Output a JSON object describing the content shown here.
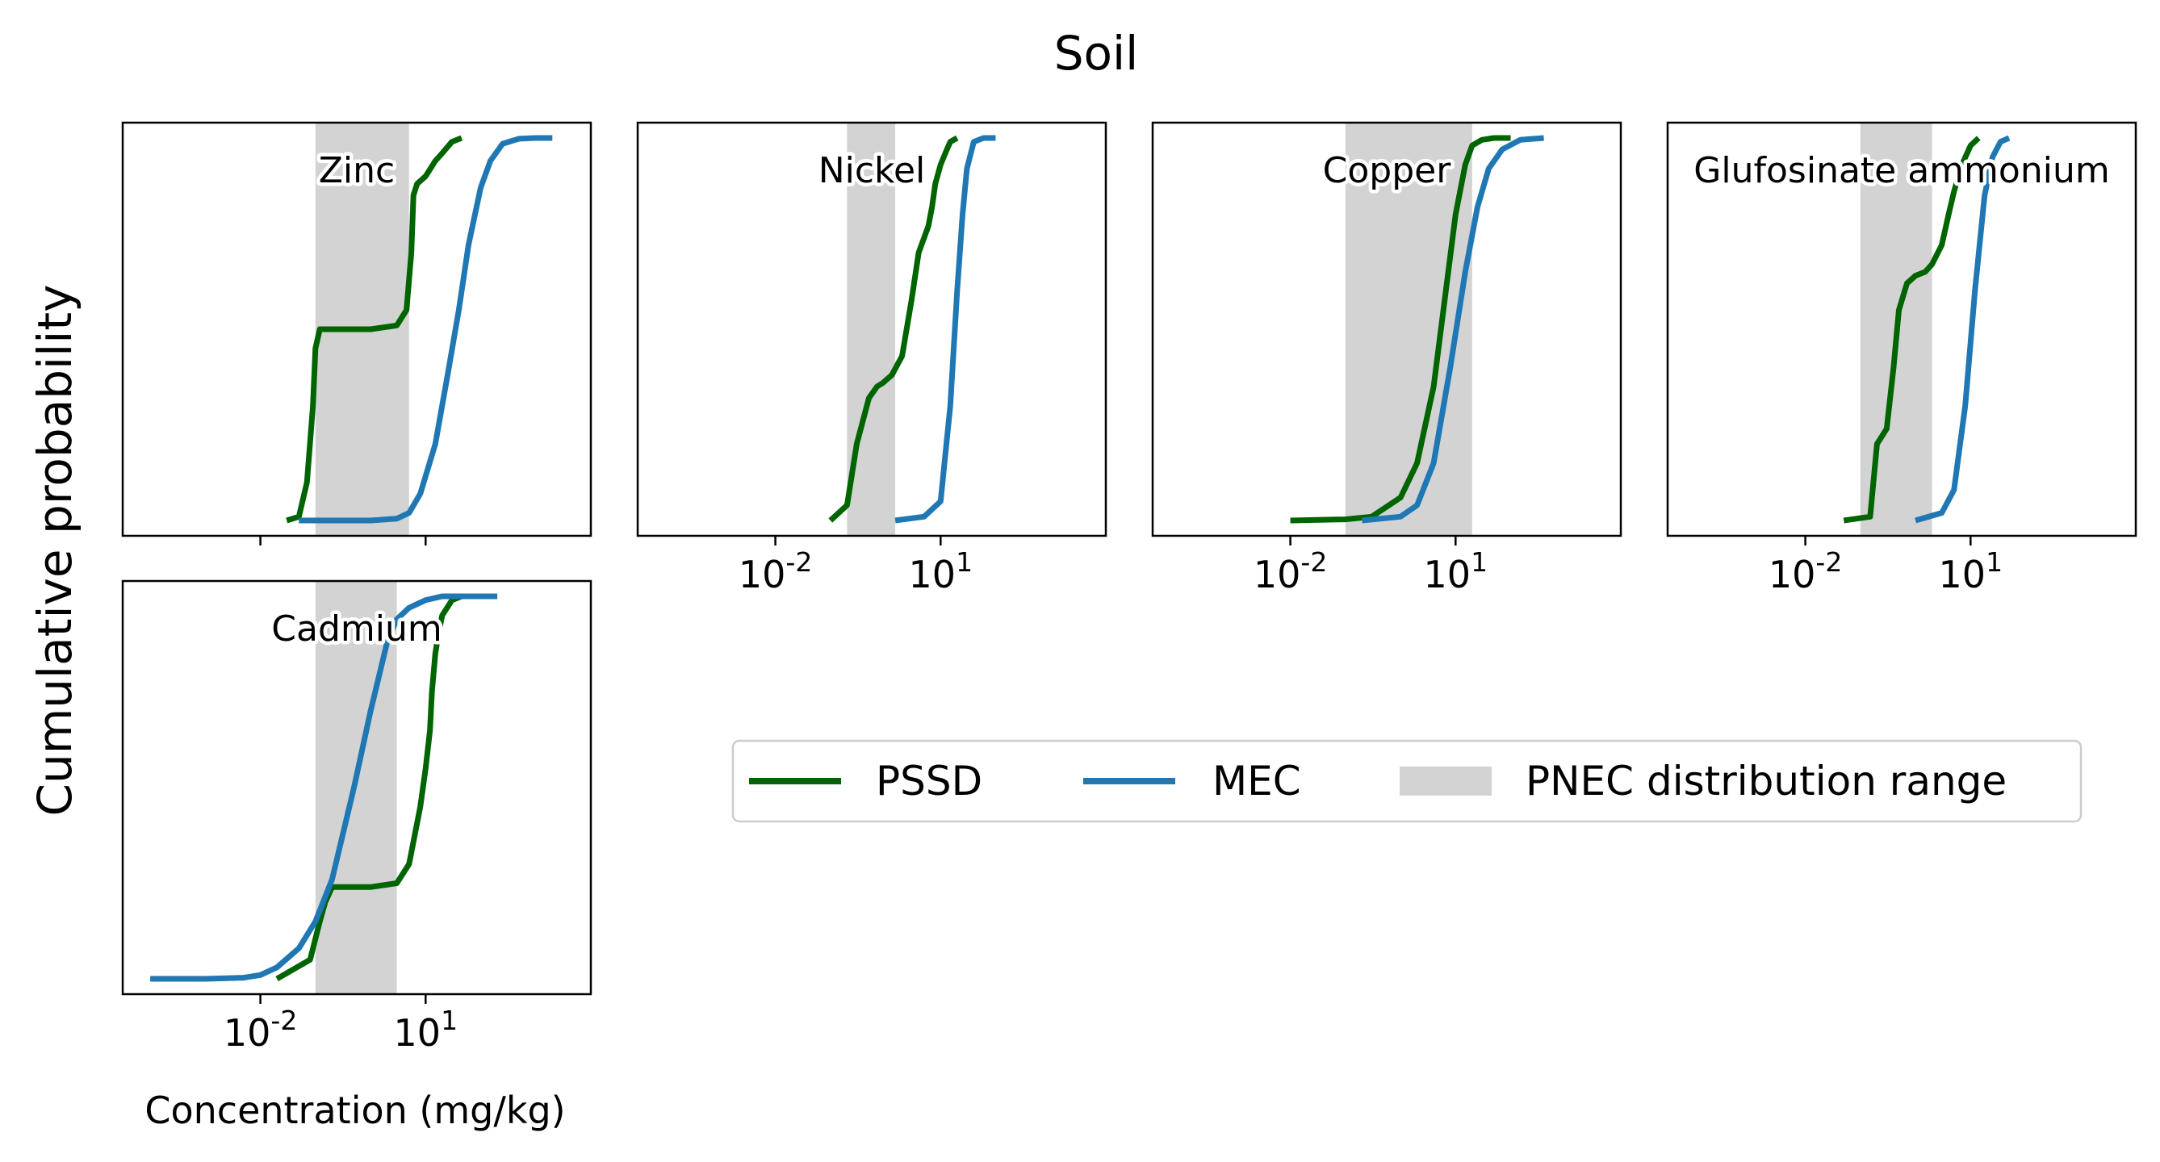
{
  "figure": {
    "title": "Soil",
    "ylabel": "Cumulative probability",
    "xlabel": "Concentration (mg/kg)"
  },
  "colors": {
    "pssd": "#006400",
    "mec": "#1f77b4",
    "pnec": "#d3d3d3"
  },
  "legend": {
    "placement": "center-right",
    "entries": [
      {
        "key": "pssd",
        "label": "PSSD"
      },
      {
        "key": "mec",
        "label": "MEC"
      },
      {
        "key": "pnec",
        "label": "PNEC distribution range"
      }
    ]
  },
  "chart_data": [
    {
      "type": "line",
      "title": "Zinc",
      "xscale": "log",
      "xlim": [
        3.16e-05,
        10000
      ],
      "ylim": [
        -0.04,
        1.04
      ],
      "xticks": [
        0.01,
        10
      ],
      "xtick_labels": [],
      "pnec_range": [
        0.1,
        5
      ],
      "series": [
        {
          "name": "PSSD",
          "x": [
            0.03,
            0.05,
            0.07,
            0.09,
            0.1,
            0.12,
            0.2,
            1,
            3,
            4.5,
            5.5,
            6,
            7,
            10,
            15,
            20,
            30,
            45
          ],
          "y": [
            0,
            0.01,
            0.1,
            0.3,
            0.45,
            0.5,
            0.5,
            0.5,
            0.51,
            0.55,
            0.7,
            0.85,
            0.88,
            0.9,
            0.94,
            0.96,
            0.99,
            1.0
          ]
        },
        {
          "name": "MEC",
          "x": [
            0.05,
            1,
            3,
            5,
            8,
            15,
            25,
            40,
            60,
            100,
            150,
            250,
            500,
            1000,
            2000
          ],
          "y": [
            0,
            0,
            0.005,
            0.02,
            0.07,
            0.2,
            0.38,
            0.55,
            0.72,
            0.87,
            0.94,
            0.985,
            0.998,
            1.0,
            1.0
          ]
        }
      ]
    },
    {
      "type": "line",
      "title": "Nickel",
      "xscale": "log",
      "xlim": [
        3.16e-05,
        10000
      ],
      "ylim": [
        -0.04,
        1.04
      ],
      "xticks": [
        0.01,
        10
      ],
      "xtick_labels": [
        "10^-2",
        "10^1"
      ],
      "pnec_range": [
        0.2,
        1.5
      ],
      "series": [
        {
          "name": "PSSD",
          "x": [
            0.1,
            0.2,
            0.3,
            0.5,
            0.7,
            0.9,
            1.3,
            2,
            3,
            4,
            6,
            7,
            8,
            10,
            13,
            15,
            20
          ],
          "y": [
            0,
            0.04,
            0.2,
            0.32,
            0.35,
            0.36,
            0.38,
            0.43,
            0.58,
            0.7,
            0.77,
            0.82,
            0.88,
            0.93,
            0.97,
            0.99,
            1.0
          ]
        },
        {
          "name": "MEC",
          "x": [
            1.5,
            5,
            10,
            15,
            20,
            25,
            30,
            40,
            60,
            100
          ],
          "y": [
            0,
            0.01,
            0.05,
            0.3,
            0.6,
            0.8,
            0.92,
            0.99,
            1.0,
            1.0
          ]
        }
      ]
    },
    {
      "type": "line",
      "title": "Copper",
      "xscale": "log",
      "xlim": [
        3.16e-05,
        10000
      ],
      "ylim": [
        -0.04,
        1.04
      ],
      "xticks": [
        0.01,
        10
      ],
      "xtick_labels": [
        "10^-2",
        "10^1"
      ],
      "pnec_range": [
        0.1,
        20
      ],
      "series": [
        {
          "name": "PSSD",
          "x": [
            0.01,
            0.1,
            0.3,
            1,
            2,
            4,
            6,
            10,
            15,
            20,
            30,
            50,
            100
          ],
          "y": [
            0,
            0.003,
            0.01,
            0.06,
            0.15,
            0.35,
            0.55,
            0.8,
            0.93,
            0.98,
            0.995,
            1.0,
            1.0
          ]
        },
        {
          "name": "MEC",
          "x": [
            0.2,
            1,
            2,
            4,
            8,
            15,
            25,
            40,
            70,
            150,
            400
          ],
          "y": [
            0,
            0.01,
            0.04,
            0.15,
            0.4,
            0.65,
            0.82,
            0.92,
            0.97,
            0.995,
            1.0
          ]
        }
      ]
    },
    {
      "type": "line",
      "title": "Glufosinate ammonium",
      "xscale": "log",
      "xlim": [
        3.16e-05,
        10000
      ],
      "ylim": [
        -0.04,
        1.04
      ],
      "xticks": [
        0.01,
        10
      ],
      "xtick_labels": [
        "10^-2",
        "10^1"
      ],
      "pnec_range": [
        0.1,
        2
      ],
      "series": [
        {
          "name": "PSSD",
          "x": [
            0.05,
            0.15,
            0.2,
            0.3,
            0.4,
            0.5,
            0.7,
            1,
            1.5,
            2,
            3,
            4,
            5,
            7,
            10,
            14
          ],
          "y": [
            0,
            0.01,
            0.2,
            0.24,
            0.4,
            0.55,
            0.62,
            0.64,
            0.65,
            0.67,
            0.72,
            0.8,
            0.86,
            0.93,
            0.98,
            1.0
          ]
        },
        {
          "name": "MEC",
          "x": [
            1,
            3,
            5,
            8,
            12,
            18,
            25,
            35,
            50
          ],
          "y": [
            0,
            0.02,
            0.08,
            0.3,
            0.6,
            0.85,
            0.95,
            0.99,
            1.0
          ]
        }
      ]
    },
    {
      "type": "line",
      "title": "Cadmium",
      "xscale": "log",
      "xlim": [
        3.16e-05,
        10000
      ],
      "ylim": [
        -0.04,
        1.04
      ],
      "xticks": [
        0.01,
        10
      ],
      "xtick_labels": [
        "10^-2",
        "10^1"
      ],
      "pnec_range": [
        0.1,
        3
      ],
      "series": [
        {
          "name": "PSSD",
          "x": [
            0.02,
            0.08,
            0.12,
            0.15,
            0.2,
            0.5,
            1,
            3,
            5,
            8,
            10,
            12,
            13,
            15,
            17,
            20,
            30,
            45
          ],
          "y": [
            0,
            0.05,
            0.15,
            0.2,
            0.24,
            0.24,
            0.24,
            0.25,
            0.3,
            0.45,
            0.55,
            0.65,
            0.75,
            0.85,
            0.9,
            0.95,
            0.99,
            1.0
          ]
        },
        {
          "name": "MEC",
          "x": [
            0.0001,
            0.001,
            0.005,
            0.01,
            0.02,
            0.05,
            0.1,
            0.2,
            0.5,
            1,
            2,
            3,
            5,
            10,
            20,
            50,
            200
          ],
          "y": [
            0,
            0,
            0.003,
            0.01,
            0.03,
            0.08,
            0.15,
            0.26,
            0.5,
            0.7,
            0.88,
            0.94,
            0.97,
            0.99,
            1.0,
            1.0,
            1.0
          ]
        }
      ]
    }
  ]
}
